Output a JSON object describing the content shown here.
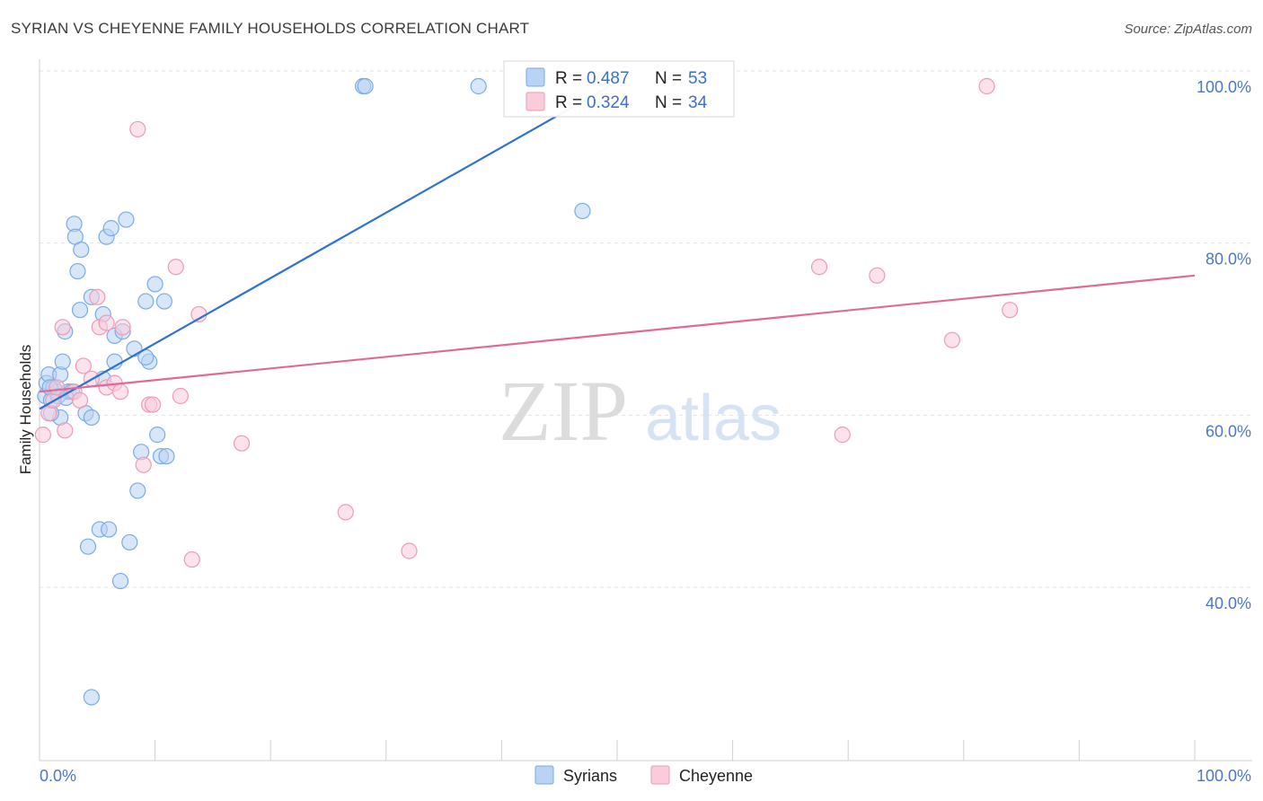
{
  "chart_data": {
    "type": "scatter",
    "title": "SYRIAN VS CHEYENNE FAMILY HOUSEHOLDS CORRELATION CHART",
    "source": "Source: ZipAtlas.com",
    "xlabel": "",
    "ylabel": "Family Households",
    "xlim": [
      0,
      100
    ],
    "ylim": [
      20,
      104
    ],
    "x_tick_labels": [
      {
        "value": 0,
        "label": "0.0%"
      },
      {
        "value": 100,
        "label": "100.0%"
      }
    ],
    "y_tick_labels": [
      {
        "value": 100,
        "label": "100.0%"
      },
      {
        "value": 80,
        "label": "80.0%"
      },
      {
        "value": 60,
        "label": "60.0%"
      },
      {
        "value": 40,
        "label": "40.0%"
      }
    ],
    "watermark": {
      "zip": "ZIP",
      "atlas": "atlas"
    },
    "legend": {
      "r_label": "R =",
      "n_label": "N =",
      "entries": [
        {
          "r": "0.487",
          "n": "53"
        },
        {
          "r": "0.324",
          "n": "34"
        }
      ]
    },
    "series": [
      {
        "name": "Syrians",
        "color": "#7aaae8",
        "fill": "#b8d3f3",
        "line_color": "#2f72d0",
        "trend": {
          "x0": 0,
          "y0": 62.5,
          "x1": 50,
          "y1": 100.5
        },
        "points": [
          [
            0.5,
            64.0
          ],
          [
            0.6,
            65.5
          ],
          [
            0.8,
            66.5
          ],
          [
            1.0,
            63.5
          ],
          [
            1.2,
            65.0
          ],
          [
            1.5,
            64.5
          ],
          [
            1.8,
            66.5
          ],
          [
            2.0,
            68.0
          ],
          [
            1.8,
            61.5
          ],
          [
            2.2,
            71.5
          ],
          [
            2.5,
            64.5
          ],
          [
            3.0,
            84.0
          ],
          [
            3.1,
            82.5
          ],
          [
            3.3,
            78.5
          ],
          [
            3.5,
            74.0
          ],
          [
            3.6,
            81.0
          ],
          [
            4.0,
            62.0
          ],
          [
            4.5,
            61.5
          ],
          [
            4.2,
            46.5
          ],
          [
            5.2,
            48.5
          ],
          [
            5.5,
            66.0
          ],
          [
            5.5,
            73.5
          ],
          [
            5.8,
            82.5
          ],
          [
            6.2,
            83.5
          ],
          [
            6.0,
            48.5
          ],
          [
            6.5,
            68.0
          ],
          [
            6.5,
            71.0
          ],
          [
            7.0,
            42.5
          ],
          [
            7.2,
            71.5
          ],
          [
            7.5,
            84.5
          ],
          [
            7.8,
            47.0
          ],
          [
            8.2,
            69.5
          ],
          [
            8.5,
            53.0
          ],
          [
            8.8,
            57.5
          ],
          [
            9.2,
            75.0
          ],
          [
            9.5,
            68.0
          ],
          [
            9.2,
            68.5
          ],
          [
            10.0,
            77.0
          ],
          [
            10.2,
            59.5
          ],
          [
            10.5,
            57.0
          ],
          [
            10.8,
            75.0
          ],
          [
            11.0,
            57.0
          ],
          [
            4.5,
            29.0
          ],
          [
            2.8,
            64.5
          ],
          [
            1.0,
            62.0
          ],
          [
            4.5,
            75.5
          ],
          [
            28.0,
            100.0
          ],
          [
            28.2,
            100.0
          ],
          [
            38.0,
            100.0
          ],
          [
            47.0,
            85.5
          ],
          [
            1.6,
            64.0
          ],
          [
            0.9,
            65.0
          ],
          [
            2.3,
            63.8
          ]
        ]
      },
      {
        "name": "Cheyenne",
        "color": "#ee9ab5",
        "fill": "#f9ccda",
        "line_color": "#e06a96",
        "trend": {
          "x0": 0,
          "y0": 64.5,
          "x1": 100,
          "y1": 78.0
        },
        "points": [
          [
            0.3,
            59.5
          ],
          [
            0.8,
            62.0
          ],
          [
            1.2,
            63.5
          ],
          [
            2.0,
            72.0
          ],
          [
            2.2,
            60.0
          ],
          [
            3.0,
            64.5
          ],
          [
            3.5,
            63.5
          ],
          [
            3.8,
            67.5
          ],
          [
            4.5,
            66.0
          ],
          [
            5.0,
            75.5
          ],
          [
            5.2,
            72.0
          ],
          [
            5.8,
            72.5
          ],
          [
            5.8,
            65.0
          ],
          [
            6.5,
            65.5
          ],
          [
            7.0,
            64.5
          ],
          [
            7.2,
            72.0
          ],
          [
            8.5,
            95.0
          ],
          [
            9.0,
            56.0
          ],
          [
            9.5,
            63.0
          ],
          [
            9.8,
            63.0
          ],
          [
            11.8,
            79.0
          ],
          [
            12.2,
            64.0
          ],
          [
            13.2,
            45.0
          ],
          [
            13.8,
            73.5
          ],
          [
            17.5,
            58.5
          ],
          [
            26.5,
            50.5
          ],
          [
            32.0,
            46.0
          ],
          [
            67.5,
            79.0
          ],
          [
            69.5,
            59.5
          ],
          [
            72.5,
            78.0
          ],
          [
            79.0,
            70.5
          ],
          [
            82.0,
            100.0
          ],
          [
            84.0,
            74.0
          ],
          [
            1.5,
            65.0
          ]
        ]
      }
    ]
  }
}
